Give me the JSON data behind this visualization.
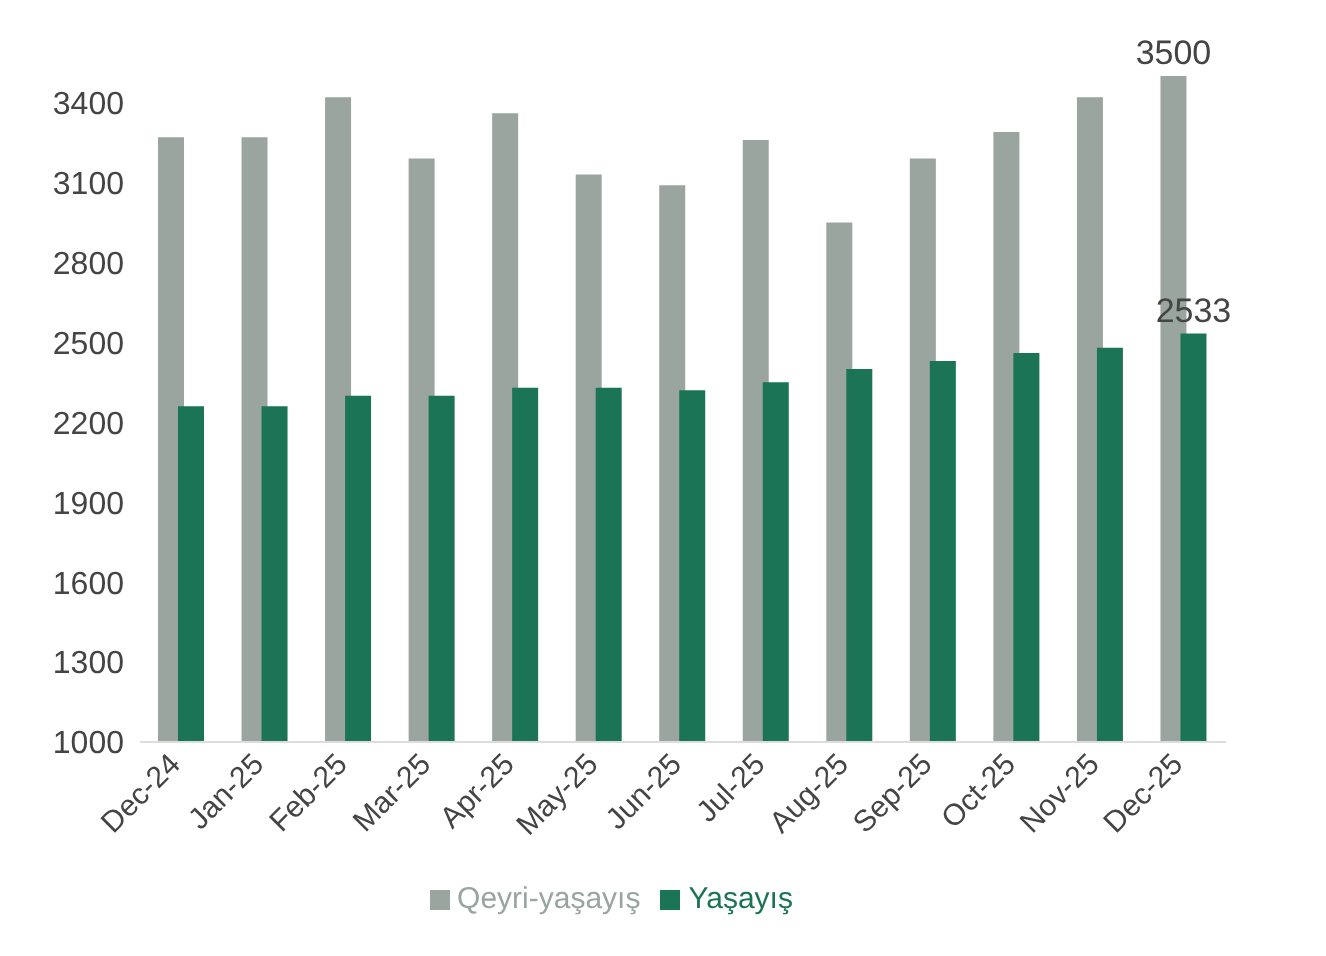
{
  "chart_data": {
    "type": "bar",
    "categories": [
      "Dec-24",
      "Jan-25",
      "Feb-25",
      "Mar-25",
      "Apr-25",
      "May-25",
      "Jun-25",
      "Jul-25",
      "Aug-25",
      "Sep-25",
      "Oct-25",
      "Nov-25",
      "Dec-25"
    ],
    "series": [
      {
        "name": "Qeyri-yaşayış",
        "color": "#9aa59f",
        "values": [
          3270,
          3270,
          3420,
          3190,
          3360,
          3130,
          3090,
          3260,
          2950,
          3190,
          3290,
          3420,
          3500
        ],
        "value_labels": [
          null,
          null,
          null,
          null,
          null,
          null,
          null,
          null,
          null,
          null,
          null,
          null,
          "3500"
        ]
      },
      {
        "name": "Yaşayış",
        "color": "#1a7455",
        "values": [
          2260,
          2260,
          2300,
          2300,
          2330,
          2330,
          2320,
          2350,
          2400,
          2430,
          2460,
          2480,
          2533
        ],
        "value_labels": [
          null,
          null,
          null,
          null,
          null,
          null,
          null,
          null,
          null,
          null,
          null,
          null,
          "2533"
        ]
      }
    ],
    "ylim": [
      1000,
      3500
    ],
    "yticks": [
      1000,
      1300,
      1600,
      1900,
      2200,
      2500,
      2800,
      3100,
      3400
    ],
    "grid": false,
    "legend": "bottom"
  }
}
